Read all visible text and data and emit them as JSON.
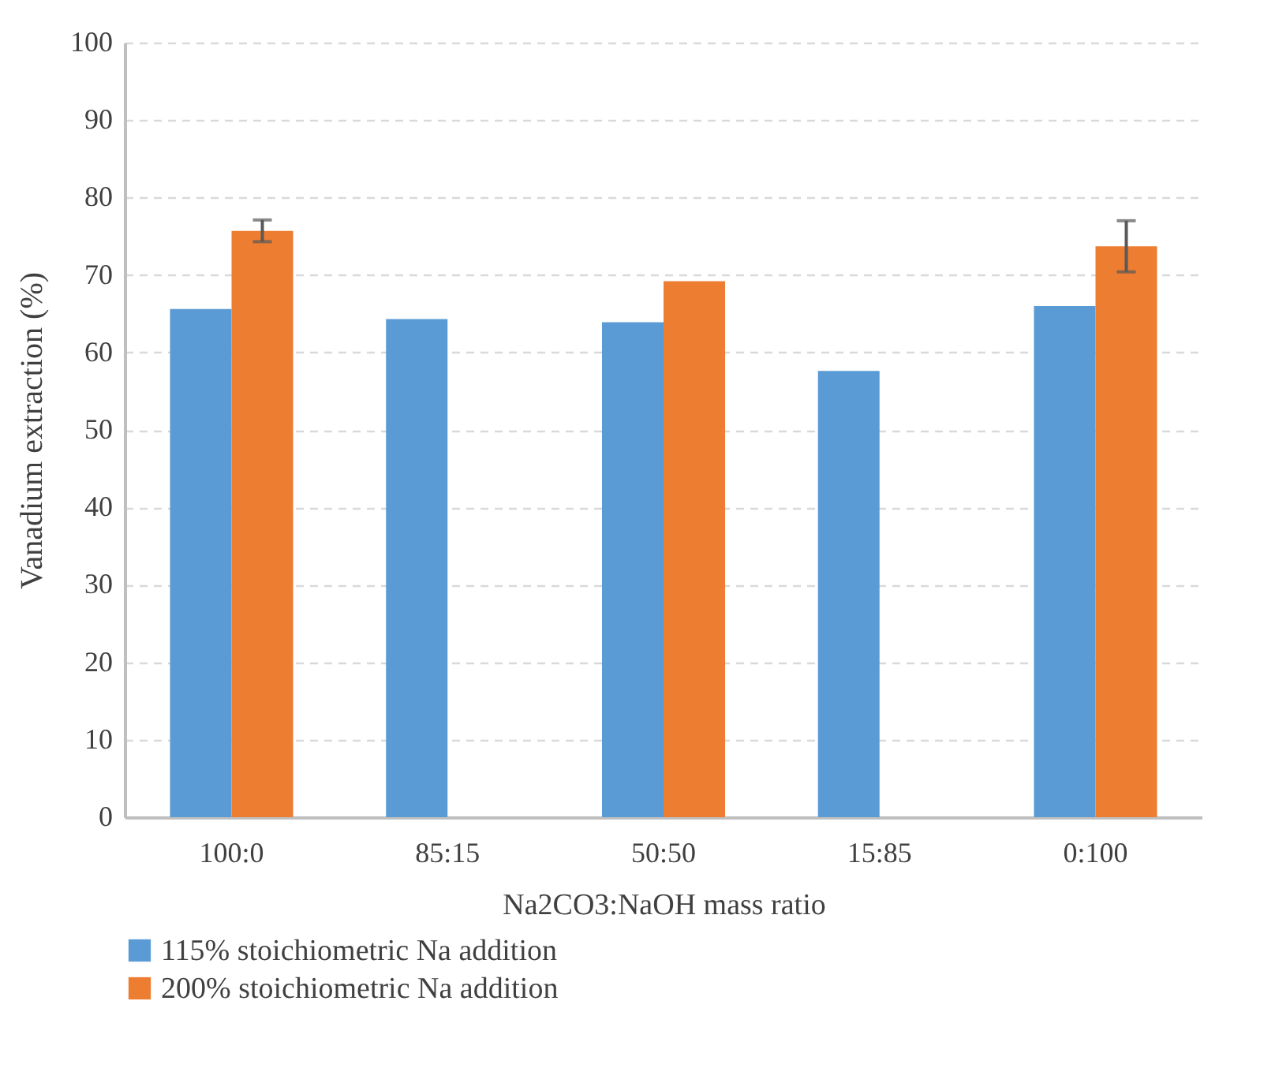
{
  "chart_data": {
    "type": "bar",
    "xlabel": "Na2CO3:NaOH mass ratio",
    "ylabel": "Vanadium extraction (%)",
    "categories": [
      "100:0",
      "85:15",
      "50:50",
      "15:85",
      "0:100"
    ],
    "series": [
      {
        "name": "115% stoichiometric Na addition",
        "color": "#5b9bd5",
        "values": [
          65.6,
          64.3,
          63.9,
          57.6,
          66.0
        ]
      },
      {
        "name": "200% stoichiometric Na addition",
        "color": "#ed7d31",
        "values": [
          75.7,
          null,
          69.2,
          null,
          73.7
        ],
        "errors": [
          1.4,
          null,
          null,
          null,
          3.3
        ]
      }
    ],
    "ylim": [
      0,
      100
    ],
    "yticks": [
      0,
      10,
      20,
      30,
      40,
      50,
      60,
      70,
      80,
      90,
      100
    ],
    "grid": "y",
    "legend": "bottom"
  }
}
